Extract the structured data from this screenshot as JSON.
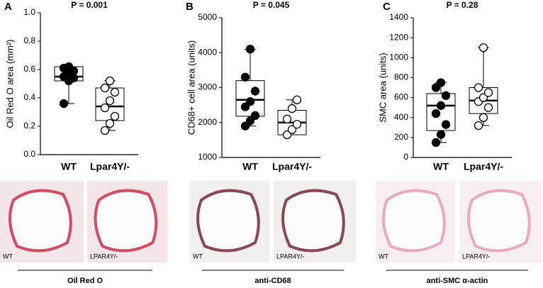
{
  "chart_data": [
    {
      "type": "box",
      "title": "P = 0.001",
      "y_label": "Oil Red O area (mm²)",
      "categories": [
        "WT",
        "Lpar4Y/-"
      ],
      "colors": [
        "#000000",
        "#ffffff"
      ],
      "ylim": [
        0,
        1
      ],
      "yticks": [
        {
          "value": 0,
          "label": "0.0"
        },
        0.2,
        0.4,
        0.6,
        0.8,
        {
          "value": 1,
          "label": "1.0"
        }
      ],
      "boxes": [
        {
          "min": 0.36,
          "q1": 0.52,
          "median": 0.55,
          "q3": 0.62,
          "max": 0.62,
          "points": [
            0.36,
            0.52,
            0.54,
            0.55,
            0.57,
            0.59,
            0.61,
            0.62
          ]
        },
        {
          "min": 0.17,
          "q1": 0.24,
          "median": 0.34,
          "q3": 0.47,
          "max": 0.52,
          "points": [
            0.17,
            0.22,
            0.27,
            0.33,
            0.38,
            0.44,
            0.47,
            0.52
          ]
        }
      ]
    },
    {
      "type": "box",
      "title": "P = 0.045",
      "y_label": "CD68+ cell area (units)",
      "categories": [
        "WT",
        "Lpar4Y/-"
      ],
      "colors": [
        "#000000",
        "#ffffff"
      ],
      "ylim": [
        1000,
        5000
      ],
      "yticks": [
        1000,
        2000,
        3000,
        4000,
        5000
      ],
      "boxes": [
        {
          "min": 1900,
          "q1": 2180,
          "median": 2650,
          "q3": 3200,
          "max": 4100,
          "points": [
            1900,
            2050,
            2200,
            2450,
            2600,
            2900,
            3300,
            4100
          ]
        },
        {
          "min": 1650,
          "q1": 1650,
          "median": 2000,
          "q3": 2350,
          "max": 2650,
          "points": [
            1650,
            1800,
            1950,
            2100,
            2400,
            2650
          ]
        }
      ]
    },
    {
      "type": "box",
      "title": "P = 0.28",
      "y_label": "SMC area (units)",
      "categories": [
        "WT",
        "Lpar4Y/-"
      ],
      "colors": [
        "#000000",
        "#ffffff"
      ],
      "ylim": [
        0,
        1400
      ],
      "yticks": [
        0,
        200,
        400,
        600,
        800,
        1000,
        1200,
        1400
      ],
      "boxes": [
        {
          "min": 150,
          "q1": 270,
          "median": 520,
          "q3": 640,
          "max": 750,
          "points": [
            150,
            230,
            330,
            440,
            520,
            620,
            700,
            750
          ]
        },
        {
          "min": 320,
          "q1": 440,
          "median": 570,
          "q3": 700,
          "max": 1100,
          "points": [
            320,
            400,
            500,
            560,
            600,
            650,
            700,
            1100
          ]
        }
      ]
    }
  ],
  "panels": [
    {
      "letter": "A",
      "image_labels": [
        "WT",
        "LPAR4Y/-"
      ],
      "caption": "Oil Red O"
    },
    {
      "letter": "B",
      "image_labels": [
        "WT",
        "LPAR4Y/-"
      ],
      "caption": "anti-CD68"
    },
    {
      "letter": "C",
      "image_labels": [
        "WT",
        "LPAR4Y/-"
      ],
      "caption": "anti-SMC α-actin"
    }
  ]
}
